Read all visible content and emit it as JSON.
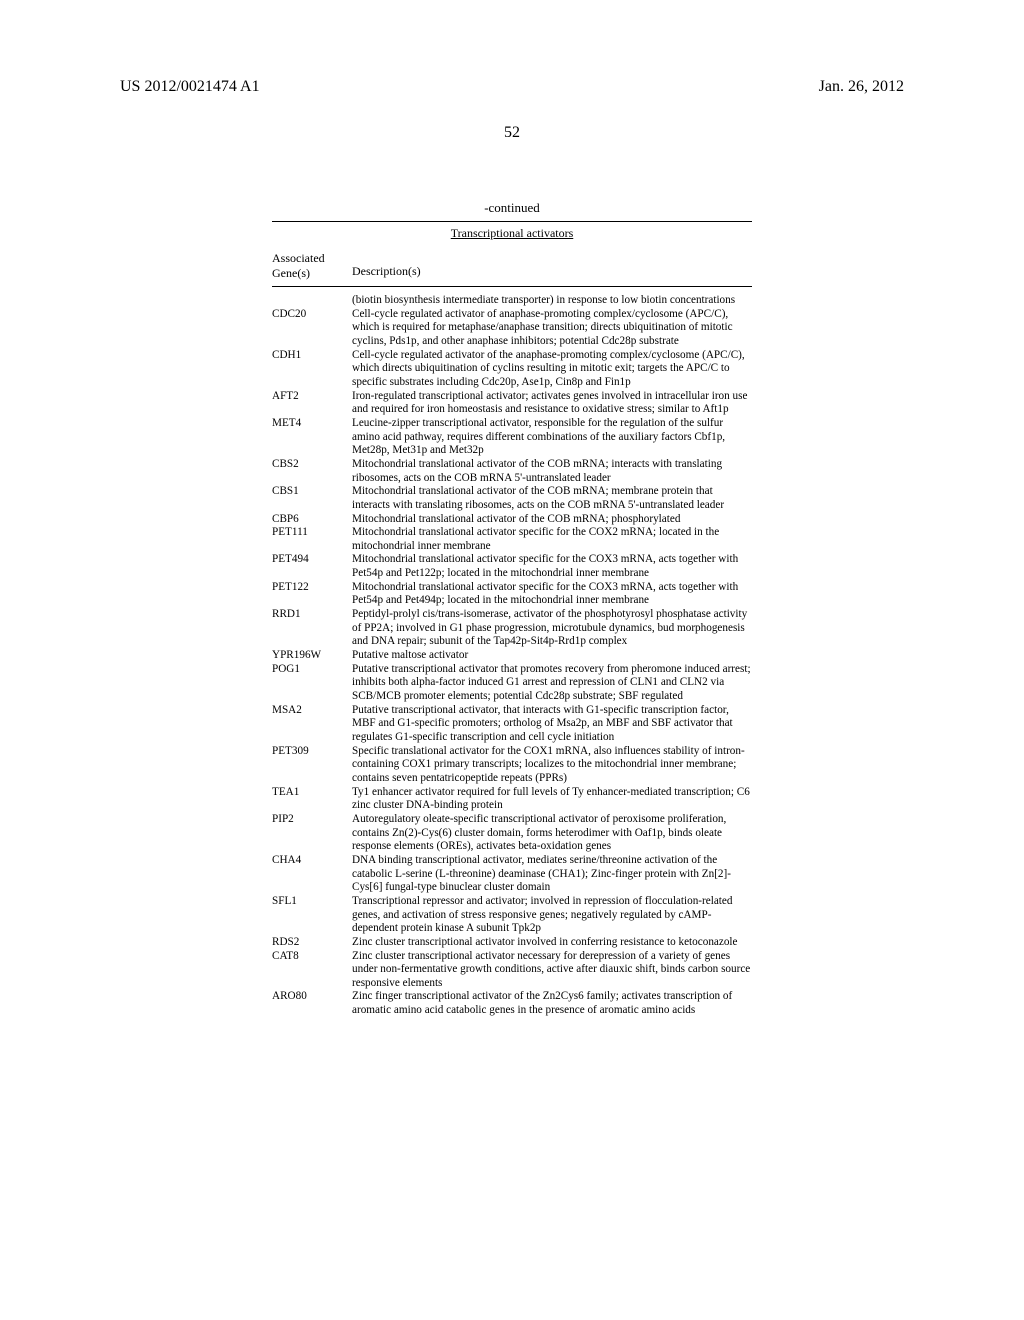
{
  "header": {
    "left": "US 2012/0021474 A1",
    "right": "Jan. 26, 2012"
  },
  "page_number": "52",
  "table": {
    "continued_label": "-continued",
    "title": "Transcriptional activators",
    "col_gene": "Associated\nGene(s)",
    "col_desc": "Description(s)",
    "rows": [
      {
        "gene": "",
        "desc": "(biotin biosynthesis intermediate transporter) in response to low biotin concentrations"
      },
      {
        "gene": "CDC20",
        "desc": "Cell-cycle regulated activator of anaphase-promoting complex/cyclosome (APC/C), which is required for metaphase/anaphase transition; directs ubiquitination of mitotic cyclins, Pds1p, and other anaphase inhibitors; potential Cdc28p substrate"
      },
      {
        "gene": "CDH1",
        "desc": "Cell-cycle regulated activator of the anaphase-promoting complex/cyclosome (APC/C), which directs ubiquitination of cyclins resulting in mitotic exit; targets the APC/C to specific substrates including Cdc20p, Ase1p, Cin8p and Fin1p"
      },
      {
        "gene": "AFT2",
        "desc": "Iron-regulated transcriptional activator; activates genes involved in intracellular iron use and required for iron homeostasis and resistance to oxidative stress; similar to Aft1p"
      },
      {
        "gene": "MET4",
        "desc": "Leucine-zipper transcriptional activator, responsible for the regulation of the sulfur amino acid pathway, requires different combinations of the auxiliary factors Cbf1p, Met28p, Met31p and Met32p"
      },
      {
        "gene": "CBS2",
        "desc": "Mitochondrial translational activator of the COB mRNA; interacts with translating ribosomes, acts on the COB mRNA 5'-untranslated leader"
      },
      {
        "gene": "CBS1",
        "desc": "Mitochondrial translational activator of the COB mRNA; membrane protein that interacts with translating ribosomes, acts on the COB mRNA 5'-untranslated leader"
      },
      {
        "gene": "CBP6",
        "desc": "Mitochondrial translational activator of the COB mRNA; phosphorylated"
      },
      {
        "gene": "PET111",
        "desc": "Mitochondrial translational activator specific for the COX2 mRNA; located in the mitochondrial inner membrane"
      },
      {
        "gene": "PET494",
        "desc": "Mitochondrial translational activator specific for the COX3 mRNA, acts together with Pet54p and Pet122p; located in the mitochondrial inner membrane"
      },
      {
        "gene": "PET122",
        "desc": "Mitochondrial translational activator specific for the COX3 mRNA, acts together with Pet54p and Pet494p; located in the mitochondrial inner membrane"
      },
      {
        "gene": "RRD1",
        "desc": "Peptidyl-prolyl cis/trans-isomerase, activator of the phosphotyrosyl phosphatase activity of PP2A; involved in G1 phase progression, microtubule dynamics, bud morphogenesis and DNA repair; subunit of the Tap42p-Sit4p-Rrd1p complex"
      },
      {
        "gene": "YPR196W",
        "desc": "Putative maltose activator"
      },
      {
        "gene": "POG1",
        "desc": "Putative transcriptional activator that promotes recovery from pheromone induced arrest; inhibits both alpha-factor induced G1 arrest and repression of CLN1 and CLN2 via SCB/MCB promoter elements; potential Cdc28p substrate; SBF regulated"
      },
      {
        "gene": "MSA2",
        "desc": "Putative transcriptional activator, that interacts with G1-specific transcription factor, MBF and G1-specific promoters; ortholog of Msa2p, an MBF and SBF activator that regulates G1-specific transcription and cell cycle initiation"
      },
      {
        "gene": "PET309",
        "desc": "Specific translational activator for the COX1 mRNA, also influences stability of intron-containing COX1 primary transcripts; localizes to the mitochondrial inner membrane; contains seven pentatricopeptide repeats (PPRs)"
      },
      {
        "gene": "TEA1",
        "desc": "Ty1 enhancer activator required for full levels of Ty enhancer-mediated transcription; C6 zinc cluster DNA-binding protein"
      },
      {
        "gene": "PIP2",
        "desc": "Autoregulatory oleate-specific transcriptional activator of peroxisome proliferation, contains Zn(2)-Cys(6) cluster domain, forms heterodimer with Oaf1p, binds oleate response elements (OREs), activates beta-oxidation genes"
      },
      {
        "gene": "CHA4",
        "desc": "DNA binding transcriptional activator, mediates serine/threonine activation of the catabolic L-serine (L-threonine) deaminase (CHA1); Zinc-finger protein with Zn[2]-Cys[6] fungal-type binuclear cluster domain"
      },
      {
        "gene": "SFL1",
        "desc": "Transcriptional repressor and activator; involved in repression of flocculation-related genes, and activation of stress responsive genes; negatively regulated by cAMP-dependent protein kinase A subunit Tpk2p"
      },
      {
        "gene": "RDS2",
        "desc": "Zinc cluster transcriptional activator involved in conferring resistance to ketoconazole"
      },
      {
        "gene": "CAT8",
        "desc": "Zinc cluster transcriptional activator necessary for derepression of a variety of genes under non-fermentative growth conditions, active after diauxic shift, binds carbon source responsive elements"
      },
      {
        "gene": "ARO80",
        "desc": "Zinc finger transcriptional activator of the Zn2Cys6 family; activates transcription of aromatic amino acid catabolic genes in the presence of aromatic amino acids"
      }
    ]
  }
}
